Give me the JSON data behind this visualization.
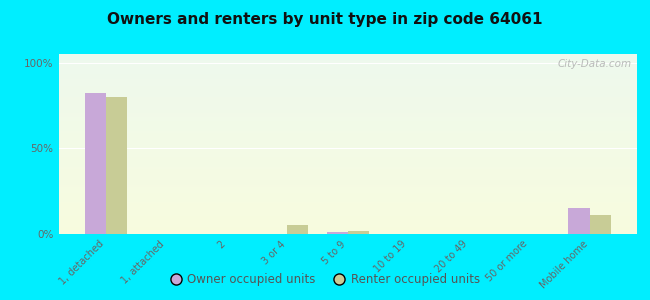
{
  "title": "Owners and renters by unit type in zip code 64061",
  "categories": [
    "1, detached",
    "1, attached",
    "2",
    "3 or 4",
    "5 to 9",
    "10 to 19",
    "20 to 49",
    "50 or more",
    "Mobile home"
  ],
  "owner_values": [
    82,
    0,
    0,
    0,
    1,
    0,
    0,
    0,
    15
  ],
  "renter_values": [
    80,
    0,
    0,
    5,
    2,
    0,
    0,
    0,
    11
  ],
  "owner_color": "#c8a8d8",
  "renter_color": "#c8cc96",
  "bg_outer": "#00eeff",
  "yticks": [
    0,
    50,
    100
  ],
  "ytick_labels": [
    "0%",
    "50%",
    "100%"
  ],
  "ylim": [
    0,
    105
  ],
  "bar_width": 0.35,
  "legend_owner": "Owner occupied units",
  "legend_renter": "Renter occupied units",
  "watermark": "City-Data.com"
}
